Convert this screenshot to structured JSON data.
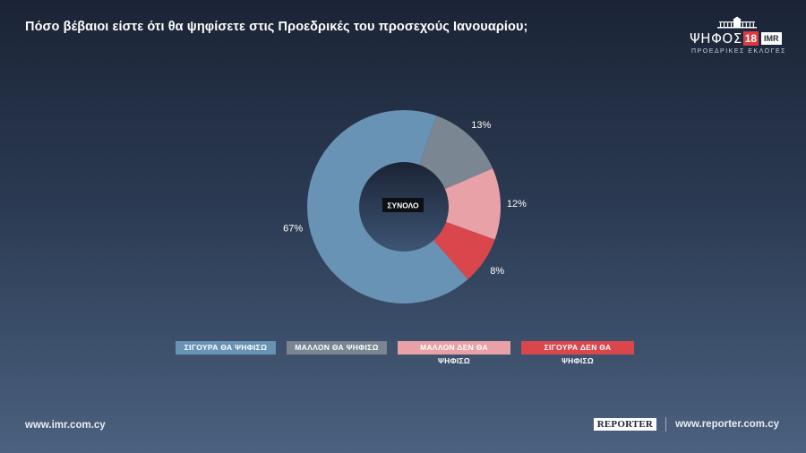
{
  "header": {
    "title": "Πόσο βέβαιοι είστε ότι θα ψηφίσετε στις Προεδρικές του προσεχούς Ιανουαρίου;"
  },
  "logo": {
    "word": "ΨΗΦΟΣ",
    "number": "18",
    "badge": "IMR",
    "subtitle": "ΠΡΟΕΔΡΙΚΕΣ ΕΚΛΟΓΕΣ"
  },
  "chart_data": {
    "type": "pie",
    "center_label": "ΣΥΝΟΛΟ",
    "categories": [
      "ΣΙΓΟΥΡΑ ΘΑ ΨΗΦΙΣΩ",
      "ΜΑΛΛΟΝ ΘΑ ΨΗΦΙΣΩ",
      "ΜΑΛΛΟΝ ΔΕΝ ΘΑ ΨΗΦΙΣΩ",
      "ΣΙΓΟΥΡΑ ΔΕΝ ΘΑ ΨΗΦΙΣΩ"
    ],
    "values": [
      67,
      13,
      12,
      8
    ],
    "value_labels": [
      "67%",
      "13%",
      "12%",
      "8%"
    ],
    "colors": [
      "#6993b5",
      "#7a8691",
      "#e8a1a6",
      "#d9464c"
    ],
    "legend_position": "bottom"
  },
  "footer": {
    "left_url": "www.imr.com.cy",
    "badge": "REPORTER",
    "right_url": "www.reporter.com.cy"
  }
}
